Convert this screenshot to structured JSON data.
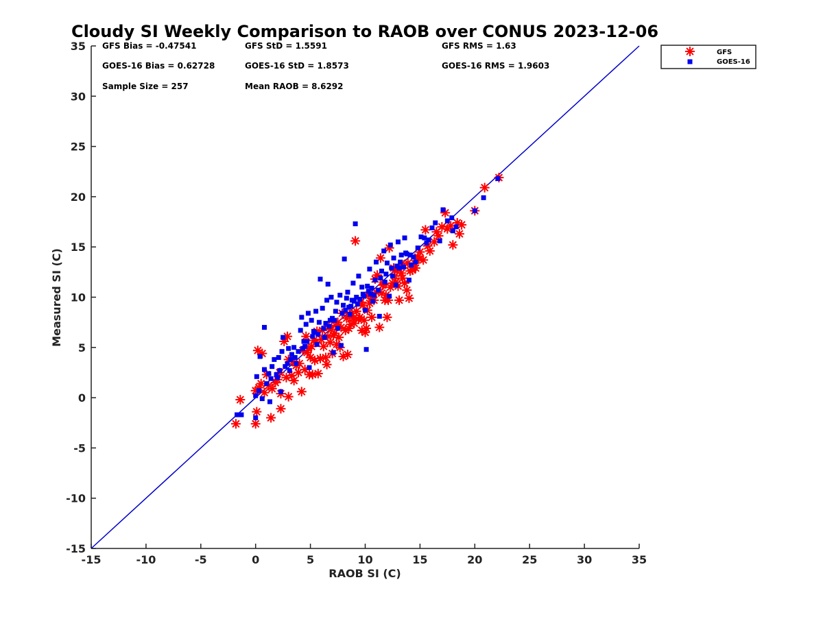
{
  "chart_data": {
    "type": "scatter",
    "title": "Cloudy SI Weekly Comparison to RAOB over CONUS 2023-12-06",
    "xlabel": "RAOB SI (C)",
    "ylabel": "Measured SI (C)",
    "xlim": [
      -15,
      35
    ],
    "ylim": [
      -15,
      35
    ],
    "xticks": [
      "-15",
      "-10",
      "-5",
      "0",
      "5",
      "10",
      "15",
      "20",
      "25",
      "30",
      "35"
    ],
    "yticks": [
      "-15",
      "-10",
      "-5",
      "0",
      "5",
      "10",
      "15",
      "20",
      "25",
      "30",
      "35"
    ],
    "grid": false,
    "legend_position": "outside-top-right",
    "reference_line": {
      "from": [
        -15,
        -15
      ],
      "to": [
        35,
        35
      ],
      "color": "#0000cc"
    },
    "stats": [
      "GFS Bias = -0.47541",
      "GFS StD = 1.5591",
      "GFS RMS = 1.63",
      "GOES-16 Bias = 0.62728",
      "GOES-16 StD = 1.8573",
      "GOES-16 RMS = 1.9603",
      "Sample Size = 257",
      "Mean RAOB = 8.6292"
    ],
    "series": [
      {
        "name": "GFS",
        "color": "#ff0000",
        "marker": "asterisk",
        "points": [
          [
            -1.8,
            -2.6
          ],
          [
            -1.4,
            -0.2
          ],
          [
            0.0,
            -2.6
          ],
          [
            0.1,
            -1.4
          ],
          [
            0.0,
            0.7
          ],
          [
            0.3,
            1.0
          ],
          [
            0.2,
            4.7
          ],
          [
            0.6,
            4.4
          ],
          [
            0.5,
            1.4
          ],
          [
            1.0,
            2.3
          ],
          [
            1.4,
            -2.0
          ],
          [
            1.5,
            0.9
          ],
          [
            1.8,
            1.5
          ],
          [
            2.3,
            -1.1
          ],
          [
            2.3,
            0.4
          ],
          [
            2.6,
            5.6
          ],
          [
            2.9,
            6.1
          ],
          [
            2.8,
            2.0
          ],
          [
            3.0,
            3.8
          ],
          [
            3.3,
            2.2
          ],
          [
            3.5,
            1.7
          ],
          [
            3.9,
            2.5
          ],
          [
            3.0,
            0.1
          ],
          [
            4.2,
            0.6
          ],
          [
            4.3,
            4.7
          ],
          [
            4.6,
            6.1
          ],
          [
            4.7,
            4.5
          ],
          [
            4.5,
            2.8
          ],
          [
            4.9,
            2.3
          ],
          [
            5.1,
            5.1
          ],
          [
            5.2,
            2.3
          ],
          [
            5.4,
            3.7
          ],
          [
            5.6,
            6.6
          ],
          [
            5.7,
            2.4
          ],
          [
            5.9,
            3.9
          ],
          [
            6.1,
            6.7
          ],
          [
            6.2,
            5.1
          ],
          [
            6.4,
            4.0
          ],
          [
            6.5,
            3.3
          ],
          [
            6.7,
            7.1
          ],
          [
            6.8,
            5.5
          ],
          [
            7.0,
            4.4
          ],
          [
            7.1,
            6.2
          ],
          [
            7.3,
            7.2
          ],
          [
            7.4,
            5.3
          ],
          [
            7.6,
            6.0
          ],
          [
            7.7,
            5.0
          ],
          [
            7.9,
            8.4
          ],
          [
            8.0,
            4.1
          ],
          [
            8.2,
            6.7
          ],
          [
            8.4,
            4.3
          ],
          [
            8.5,
            6.9
          ],
          [
            8.7,
            7.3
          ],
          [
            8.9,
            7.9
          ],
          [
            9.1,
            15.6
          ],
          [
            9.2,
            8.6
          ],
          [
            9.4,
            7.8
          ],
          [
            9.5,
            8.0
          ],
          [
            9.7,
            6.7
          ],
          [
            9.9,
            7.7
          ],
          [
            10.0,
            6.5
          ],
          [
            10.1,
            6.9
          ],
          [
            10.2,
            8.7
          ],
          [
            10.4,
            9.4
          ],
          [
            10.6,
            9.9
          ],
          [
            10.8,
            9.7
          ],
          [
            11.0,
            10.5
          ],
          [
            11.1,
            12.2
          ],
          [
            11.3,
            7.0
          ],
          [
            11.5,
            10.4
          ],
          [
            11.6,
            11.2
          ],
          [
            11.8,
            9.7
          ],
          [
            12.0,
            8.0
          ],
          [
            12.1,
            9.7
          ],
          [
            12.3,
            11.0
          ],
          [
            12.5,
            11.4
          ],
          [
            12.6,
            12.9
          ],
          [
            12.8,
            11.5
          ],
          [
            13.0,
            11.1
          ],
          [
            13.1,
            9.7
          ],
          [
            13.3,
            12.4
          ],
          [
            13.5,
            13.2
          ],
          [
            13.6,
            11.4
          ],
          [
            13.8,
            10.7
          ],
          [
            14.0,
            9.9
          ],
          [
            14.1,
            12.6
          ],
          [
            14.3,
            12.7
          ],
          [
            14.5,
            13.4
          ],
          [
            14.6,
            12.9
          ],
          [
            14.8,
            14.0
          ],
          [
            15.0,
            14.5
          ],
          [
            15.3,
            13.7
          ],
          [
            15.5,
            16.7
          ],
          [
            15.9,
            14.6
          ],
          [
            16.3,
            15.5
          ],
          [
            16.7,
            16.1
          ],
          [
            17.0,
            17.0
          ],
          [
            17.3,
            18.4
          ],
          [
            17.8,
            17.1
          ],
          [
            18.0,
            15.2
          ],
          [
            18.4,
            17.4
          ],
          [
            18.6,
            16.3
          ],
          [
            18.8,
            17.2
          ],
          [
            20.0,
            18.6
          ],
          [
            20.9,
            20.9
          ],
          [
            22.2,
            21.9
          ],
          [
            10.6,
            8.0
          ],
          [
            11.9,
            10.2
          ],
          [
            9.0,
            7.4
          ],
          [
            8.3,
            7.9
          ],
          [
            7.2,
            6.4
          ],
          [
            6.0,
            5.8
          ],
          [
            5.0,
            4.0
          ],
          [
            3.7,
            3.2
          ],
          [
            12.7,
            12.1
          ],
          [
            13.4,
            11.9
          ],
          [
            14.9,
            13.8
          ],
          [
            10.9,
            11.8
          ],
          [
            11.4,
            13.9
          ],
          [
            12.2,
            14.9
          ],
          [
            9.8,
            9.2
          ],
          [
            8.8,
            8.4
          ],
          [
            7.5,
            7.5
          ],
          [
            6.6,
            6.1
          ],
          [
            5.3,
            5.7
          ],
          [
            4.0,
            3.4
          ],
          [
            2.0,
            1.8
          ],
          [
            1.2,
            1.2
          ],
          [
            15.7,
            15.1
          ],
          [
            16.5,
            16.5
          ],
          [
            17.5,
            16.8
          ],
          [
            13.9,
            13.4
          ],
          [
            12.9,
            12.6
          ],
          [
            11.7,
            11.3
          ],
          [
            10.3,
            10.2
          ],
          [
            9.6,
            9.5
          ],
          [
            8.6,
            8.1
          ],
          [
            7.8,
            7.0
          ],
          [
            6.9,
            6.8
          ],
          [
            5.5,
            5.5
          ],
          [
            4.8,
            4.9
          ],
          [
            3.4,
            3.6
          ],
          [
            2.2,
            2.5
          ],
          [
            0.8,
            0.5
          ]
        ]
      },
      {
        "name": "GOES-16",
        "color": "#0000ee",
        "marker": "square",
        "points": [
          [
            -1.7,
            -1.7
          ],
          [
            -1.3,
            -1.7
          ],
          [
            0.0,
            -2.0
          ],
          [
            0.0,
            0.2
          ],
          [
            0.1,
            2.1
          ],
          [
            0.4,
            4.1
          ],
          [
            0.6,
            -0.1
          ],
          [
            0.8,
            2.8
          ],
          [
            0.8,
            7.0
          ],
          [
            1.2,
            2.4
          ],
          [
            1.3,
            -0.4
          ],
          [
            1.5,
            3.1
          ],
          [
            1.7,
            3.8
          ],
          [
            2.0,
            2.0
          ],
          [
            2.1,
            4.0
          ],
          [
            2.3,
            0.6
          ],
          [
            2.4,
            4.6
          ],
          [
            2.5,
            6.0
          ],
          [
            2.7,
            3.1
          ],
          [
            3.0,
            4.9
          ],
          [
            3.1,
            2.7
          ],
          [
            3.3,
            4.3
          ],
          [
            3.5,
            5.0
          ],
          [
            3.7,
            3.4
          ],
          [
            3.9,
            4.6
          ],
          [
            4.1,
            6.7
          ],
          [
            4.2,
            8.0
          ],
          [
            4.4,
            5.6
          ],
          [
            4.6,
            7.3
          ],
          [
            4.8,
            8.4
          ],
          [
            4.9,
            3.0
          ],
          [
            5.1,
            7.7
          ],
          [
            5.3,
            6.6
          ],
          [
            5.5,
            8.6
          ],
          [
            5.6,
            5.3
          ],
          [
            5.8,
            7.5
          ],
          [
            5.9,
            11.8
          ],
          [
            6.1,
            8.9
          ],
          [
            6.3,
            6.0
          ],
          [
            6.5,
            9.7
          ],
          [
            6.6,
            11.3
          ],
          [
            6.8,
            7.7
          ],
          [
            6.9,
            10.0
          ],
          [
            7.1,
            4.5
          ],
          [
            7.3,
            8.6
          ],
          [
            7.4,
            9.5
          ],
          [
            7.5,
            6.9
          ],
          [
            7.7,
            10.2
          ],
          [
            7.8,
            5.2
          ],
          [
            8.0,
            9.2
          ],
          [
            8.1,
            13.8
          ],
          [
            8.3,
            9.9
          ],
          [
            8.4,
            10.5
          ],
          [
            8.6,
            8.3
          ],
          [
            8.8,
            9.7
          ],
          [
            8.9,
            11.4
          ],
          [
            9.1,
            17.3
          ],
          [
            9.2,
            10.0
          ],
          [
            9.4,
            12.1
          ],
          [
            9.5,
            9.8
          ],
          [
            9.7,
            11.0
          ],
          [
            9.8,
            10.3
          ],
          [
            10.0,
            8.7
          ],
          [
            10.1,
            4.8
          ],
          [
            10.2,
            11.1
          ],
          [
            10.4,
            12.8
          ],
          [
            10.5,
            10.3
          ],
          [
            10.7,
            9.6
          ],
          [
            10.9,
            11.7
          ],
          [
            11.0,
            13.5
          ],
          [
            11.2,
            10.7
          ],
          [
            11.3,
            8.1
          ],
          [
            11.5,
            12.6
          ],
          [
            11.7,
            14.6
          ],
          [
            11.8,
            11.5
          ],
          [
            12.0,
            13.4
          ],
          [
            12.2,
            10.1
          ],
          [
            12.3,
            15.2
          ],
          [
            12.5,
            12.1
          ],
          [
            12.6,
            13.9
          ],
          [
            12.8,
            11.2
          ],
          [
            13.0,
            15.5
          ],
          [
            13.1,
            12.9
          ],
          [
            13.3,
            14.2
          ],
          [
            13.5,
            13.0
          ],
          [
            13.6,
            15.9
          ],
          [
            13.8,
            14.3
          ],
          [
            14.0,
            11.7
          ],
          [
            14.2,
            13.2
          ],
          [
            14.4,
            14.0
          ],
          [
            14.6,
            13.5
          ],
          [
            14.8,
            14.9
          ],
          [
            15.1,
            16.0
          ],
          [
            15.4,
            15.9
          ],
          [
            15.8,
            15.7
          ],
          [
            16.1,
            16.9
          ],
          [
            16.4,
            17.4
          ],
          [
            16.8,
            15.6
          ],
          [
            17.1,
            18.7
          ],
          [
            17.5,
            17.6
          ],
          [
            17.9,
            17.9
          ],
          [
            18.0,
            16.6
          ],
          [
            18.3,
            17.0
          ],
          [
            20.0,
            18.6
          ],
          [
            20.8,
            19.9
          ],
          [
            22.1,
            21.8
          ],
          [
            10.6,
            10.9
          ],
          [
            11.4,
            11.9
          ],
          [
            9.0,
            9.6
          ],
          [
            8.5,
            9.0
          ],
          [
            7.2,
            7.7
          ],
          [
            6.2,
            6.9
          ],
          [
            5.2,
            6.1
          ],
          [
            4.5,
            5.1
          ],
          [
            3.6,
            4.0
          ],
          [
            12.4,
            12.9
          ],
          [
            13.2,
            13.5
          ],
          [
            14.1,
            14.2
          ],
          [
            10.3,
            10.6
          ],
          [
            9.9,
            10.1
          ],
          [
            8.7,
            9.1
          ],
          [
            7.9,
            8.4
          ],
          [
            6.7,
            7.1
          ],
          [
            5.7,
            6.3
          ],
          [
            4.3,
            4.9
          ],
          [
            2.9,
            3.4
          ],
          [
            1.9,
            2.3
          ],
          [
            1.0,
            1.4
          ],
          [
            0.3,
            0.7
          ],
          [
            11.9,
            12.3
          ],
          [
            12.9,
            13.1
          ],
          [
            13.7,
            14.4
          ],
          [
            15.6,
            15.4
          ],
          [
            10.8,
            10.2
          ],
          [
            9.3,
            9.3
          ],
          [
            8.2,
            8.7
          ],
          [
            7.0,
            7.9
          ],
          [
            6.4,
            7.4
          ],
          [
            5.4,
            6.5
          ],
          [
            4.7,
            5.6
          ],
          [
            3.2,
            3.8
          ],
          [
            2.2,
            2.7
          ],
          [
            1.4,
            1.9
          ]
        ]
      }
    ]
  },
  "legend": [
    {
      "label": "GFS",
      "color": "#ff0000",
      "marker": "asterisk"
    },
    {
      "label": "GOES-16",
      "color": "#0000ee",
      "marker": "square"
    }
  ]
}
